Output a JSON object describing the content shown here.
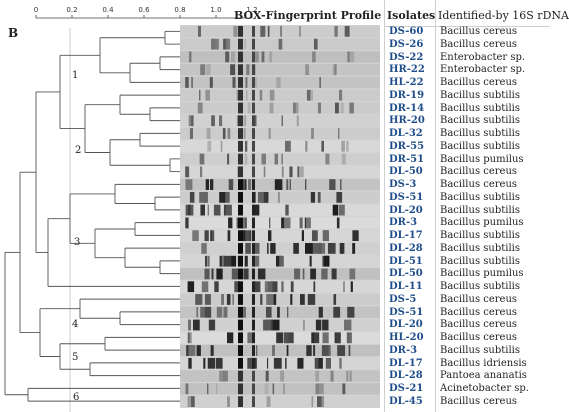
{
  "panel_letter": "B",
  "scale": {
    "ticks": [
      "0",
      "0.2",
      "0.4",
      "0.6",
      "0.8",
      "1.0",
      "1.2"
    ]
  },
  "headers": {
    "profile": "BOX-Fingerprint Profile",
    "isolates": "Isolates",
    "identified": "Identified-by 16S rDNA"
  },
  "clusters": [
    {
      "label": "1"
    },
    {
      "label": "2"
    },
    {
      "label": "3"
    },
    {
      "label": "4"
    },
    {
      "label": "5"
    },
    {
      "label": "6"
    }
  ],
  "colors": {
    "isolate_text": "#1f4e8a",
    "gel_background": "#d2d2d2",
    "band_dark": "#1a1a1a",
    "tree_line": "#555555"
  },
  "rows": [
    {
      "isolate": "DS-60",
      "species": "Bacillus cereus"
    },
    {
      "isolate": "DS-26",
      "species": "Bacillus cereus"
    },
    {
      "isolate": "DS-22",
      "species": "Enterobacter sp."
    },
    {
      "isolate": "HR-22",
      "species": "Enterobacter sp."
    },
    {
      "isolate": "HL-22",
      "species": "Bacillus cereus"
    },
    {
      "isolate": "DR-19",
      "species": "Bacillus subtilis"
    },
    {
      "isolate": "DR-14",
      "species": "Bacillus subtilis"
    },
    {
      "isolate": "HR-20",
      "species": "Bacillus subtilis"
    },
    {
      "isolate": "DL-32",
      "species": "Bacillus subtilis"
    },
    {
      "isolate": "DR-55",
      "species": "Bacillus subtilis"
    },
    {
      "isolate": "DR-51",
      "species": "Bacillus pumilus"
    },
    {
      "isolate": "DL-50",
      "species": "Bacillus cereus"
    },
    {
      "isolate": "DS-3",
      "species": "Bacillus cereus"
    },
    {
      "isolate": "DS-51",
      "species": "Bacillus subtilis"
    },
    {
      "isolate": "DL-20",
      "species": "Bacillus subtilis"
    },
    {
      "isolate": "DR-3",
      "species": "Bacillus pumilus"
    },
    {
      "isolate": "DL-17",
      "species": "Bacillus subtilis"
    },
    {
      "isolate": "DL-28",
      "species": "Bacillus subtilis"
    },
    {
      "isolate": "DL-51",
      "species": "Bacillus subtilis"
    },
    {
      "isolate": "DL-50",
      "species": "Bacillus pumilus"
    },
    {
      "isolate": "DL-11",
      "species": "Bacillus subtilis"
    },
    {
      "isolate": "DS-5",
      "species": "Bacillus cereus"
    },
    {
      "isolate": "DS-51",
      "species": "Bacillus cereus"
    },
    {
      "isolate": "DL-20",
      "species": "Bacillus cereus"
    },
    {
      "isolate": "HL-20",
      "species": "Bacillus cereus"
    },
    {
      "isolate": "DR-3",
      "species": "Bacillus subtilis"
    },
    {
      "isolate": "DL-17",
      "species": "Bacillus idriensis"
    },
    {
      "isolate": "DL-28",
      "species": "Pantoea ananatis"
    },
    {
      "isolate": "DS-21",
      "species": "Acinetobacter sp."
    },
    {
      "isolate": "DL-45",
      "species": "Bacillus cereus"
    }
  ]
}
